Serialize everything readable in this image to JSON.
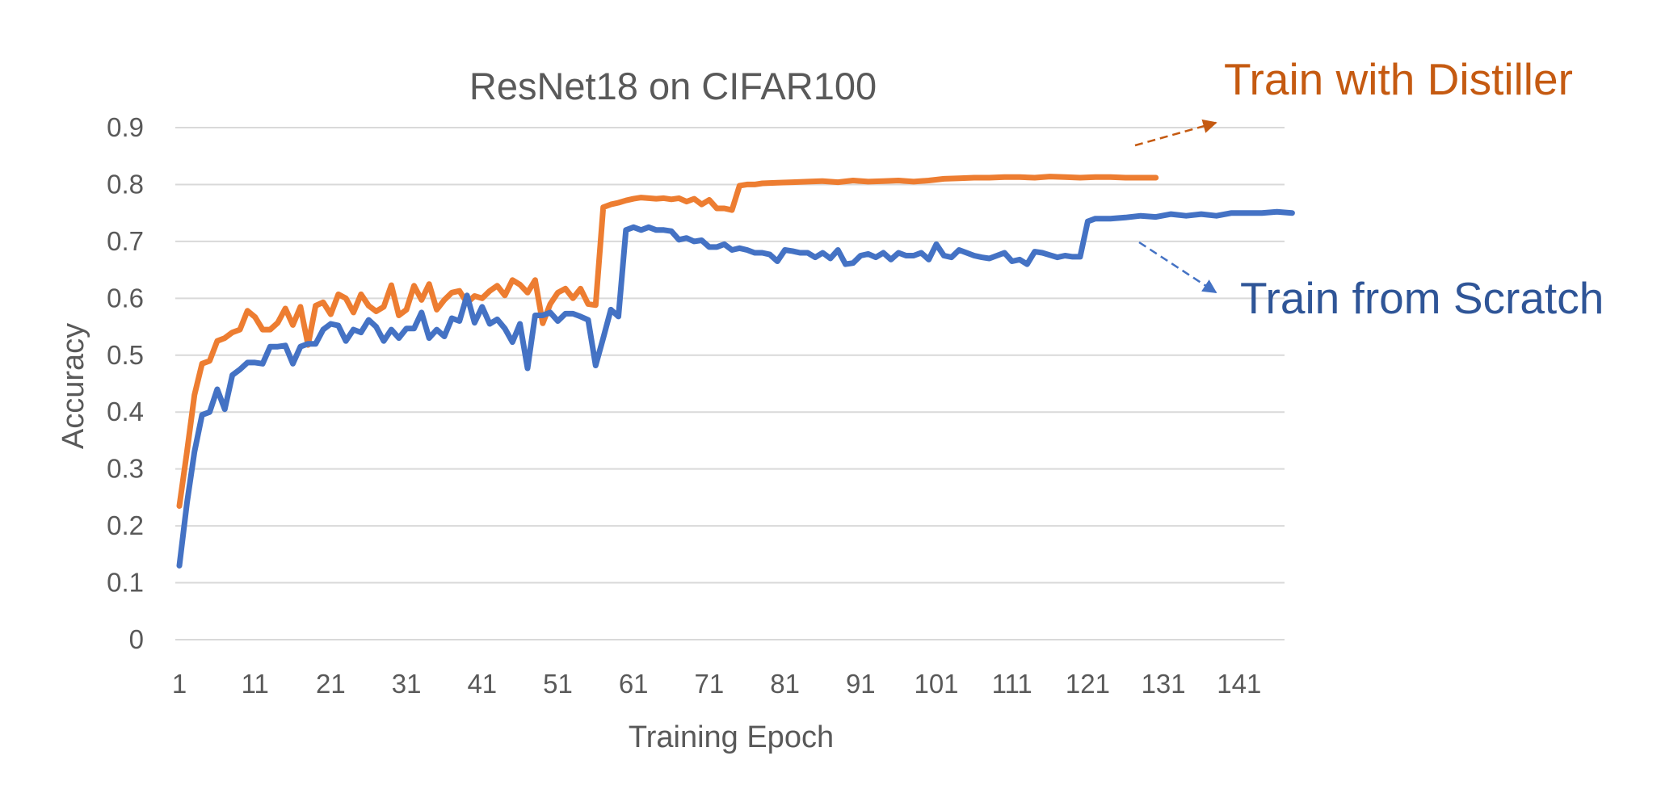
{
  "chart_data": {
    "type": "line",
    "title": "ResNet18 on CIFAR100",
    "xlabel": "Training Epoch",
    "ylabel": "Accuracy",
    "ylim": [
      0,
      0.9
    ],
    "yticks": [
      "0",
      "0.1",
      "0.2",
      "0.3",
      "0.4",
      "0.5",
      "0.6",
      "0.7",
      "0.8",
      "0.9"
    ],
    "xticks": [
      "1",
      "11",
      "21",
      "31",
      "41",
      "51",
      "61",
      "71",
      "81",
      "91",
      "101",
      "111",
      "121",
      "131",
      "141"
    ],
    "xlim": [
      1,
      148
    ],
    "grid": true,
    "legend": "none",
    "annotations": [
      {
        "text": "Train with Distiller",
        "color": "#c55a11"
      },
      {
        "text": "Train from Scratch",
        "color": "#2f5597"
      }
    ],
    "series": [
      {
        "name": "Train with Distiller",
        "color": "#ed7d31",
        "x": [
          1,
          2,
          3,
          4,
          5,
          6,
          7,
          8,
          9,
          10,
          11,
          12,
          13,
          14,
          15,
          16,
          17,
          18,
          19,
          20,
          21,
          22,
          23,
          24,
          25,
          26,
          27,
          28,
          29,
          30,
          31,
          32,
          33,
          34,
          35,
          36,
          37,
          38,
          39,
          40,
          41,
          42,
          43,
          44,
          45,
          46,
          47,
          48,
          49,
          50,
          51,
          52,
          53,
          54,
          55,
          56,
          57,
          58,
          59,
          60,
          61,
          62,
          63,
          64,
          65,
          66,
          67,
          68,
          69,
          70,
          71,
          72,
          73,
          74,
          75,
          76,
          77,
          78,
          80,
          82,
          84,
          86,
          88,
          90,
          92,
          94,
          96,
          98,
          100,
          102,
          104,
          106,
          108,
          110,
          112,
          114,
          116,
          118,
          120,
          122,
          124,
          126,
          128,
          130
        ],
        "values": [
          0.235,
          0.33,
          0.43,
          0.485,
          0.49,
          0.525,
          0.53,
          0.54,
          0.545,
          0.578,
          0.567,
          0.545,
          0.545,
          0.557,
          0.582,
          0.553,
          0.585,
          0.518,
          0.587,
          0.593,
          0.572,
          0.607,
          0.6,
          0.575,
          0.607,
          0.587,
          0.577,
          0.585,
          0.623,
          0.57,
          0.58,
          0.622,
          0.597,
          0.625,
          0.58,
          0.597,
          0.61,
          0.613,
          0.592,
          0.604,
          0.6,
          0.613,
          0.622,
          0.605,
          0.632,
          0.624,
          0.61,
          0.632,
          0.556,
          0.59,
          0.61,
          0.617,
          0.6,
          0.617,
          0.59,
          0.588,
          0.76,
          0.765,
          0.768,
          0.772,
          0.775,
          0.777,
          0.776,
          0.775,
          0.776,
          0.774,
          0.776,
          0.77,
          0.775,
          0.765,
          0.773,
          0.758,
          0.758,
          0.755,
          0.798,
          0.8,
          0.8,
          0.802,
          0.803,
          0.804,
          0.805,
          0.806,
          0.804,
          0.807,
          0.805,
          0.806,
          0.807,
          0.805,
          0.807,
          0.81,
          0.811,
          0.812,
          0.812,
          0.813,
          0.813,
          0.812,
          0.814,
          0.813,
          0.812,
          0.813,
          0.813,
          0.812,
          0.812,
          0.812
        ]
      },
      {
        "name": "Train from Scratch",
        "color": "#4472c4",
        "x": [
          1,
          2,
          3,
          4,
          5,
          6,
          7,
          8,
          9,
          10,
          11,
          12,
          13,
          14,
          15,
          16,
          17,
          18,
          19,
          20,
          21,
          22,
          23,
          24,
          25,
          26,
          27,
          28,
          29,
          30,
          31,
          32,
          33,
          34,
          35,
          36,
          37,
          38,
          39,
          40,
          41,
          42,
          43,
          44,
          45,
          46,
          47,
          48,
          49,
          50,
          51,
          52,
          53,
          54,
          55,
          56,
          57,
          58,
          59,
          60,
          61,
          62,
          63,
          64,
          65,
          66,
          67,
          68,
          69,
          70,
          71,
          72,
          73,
          74,
          75,
          76,
          77,
          78,
          79,
          80,
          81,
          82,
          83,
          84,
          85,
          86,
          87,
          88,
          89,
          90,
          91,
          92,
          93,
          94,
          95,
          96,
          97,
          98,
          99,
          100,
          101,
          102,
          103,
          104,
          105,
          106,
          107,
          108,
          109,
          110,
          111,
          112,
          113,
          114,
          115,
          116,
          117,
          118,
          119,
          120,
          121,
          122,
          124,
          126,
          128,
          130,
          132,
          134,
          136,
          138,
          140,
          142,
          144,
          146,
          148
        ],
        "values": [
          0.13,
          0.24,
          0.33,
          0.395,
          0.4,
          0.44,
          0.405,
          0.465,
          0.475,
          0.487,
          0.487,
          0.485,
          0.515,
          0.515,
          0.517,
          0.485,
          0.515,
          0.52,
          0.52,
          0.545,
          0.555,
          0.552,
          0.525,
          0.545,
          0.54,
          0.562,
          0.55,
          0.525,
          0.545,
          0.53,
          0.547,
          0.547,
          0.575,
          0.53,
          0.545,
          0.533,
          0.565,
          0.56,
          0.605,
          0.557,
          0.585,
          0.555,
          0.563,
          0.547,
          0.523,
          0.555,
          0.477,
          0.57,
          0.57,
          0.575,
          0.56,
          0.573,
          0.573,
          0.568,
          0.562,
          0.482,
          0.53,
          0.58,
          0.568,
          0.72,
          0.725,
          0.72,
          0.725,
          0.72,
          0.72,
          0.718,
          0.703,
          0.706,
          0.7,
          0.702,
          0.69,
          0.69,
          0.695,
          0.685,
          0.688,
          0.685,
          0.68,
          0.68,
          0.677,
          0.665,
          0.685,
          0.683,
          0.68,
          0.68,
          0.672,
          0.68,
          0.67,
          0.685,
          0.66,
          0.662,
          0.675,
          0.678,
          0.672,
          0.68,
          0.668,
          0.68,
          0.675,
          0.675,
          0.68,
          0.668,
          0.695,
          0.675,
          0.672,
          0.685,
          0.68,
          0.675,
          0.672,
          0.67,
          0.675,
          0.68,
          0.665,
          0.668,
          0.66,
          0.682,
          0.68,
          0.676,
          0.672,
          0.675,
          0.673,
          0.673,
          0.735,
          0.74,
          0.74,
          0.742,
          0.745,
          0.743,
          0.748,
          0.745,
          0.748,
          0.745,
          0.75,
          0.75,
          0.75,
          0.752,
          0.75
        ]
      }
    ]
  }
}
